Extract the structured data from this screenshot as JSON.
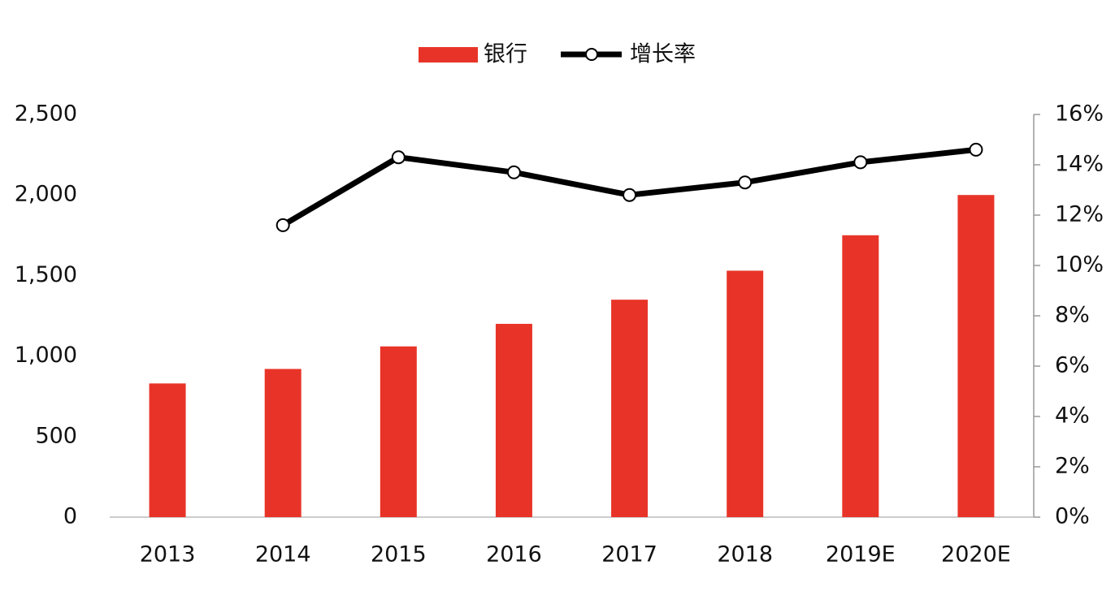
{
  "chart_data": {
    "type": "bar",
    "categories": [
      "2013",
      "2014",
      "2015",
      "2016",
      "2017",
      "2018",
      "2019E",
      "2020E"
    ],
    "series": [
      {
        "name": "银行",
        "type": "bar",
        "color": "#e83428",
        "values": [
          830,
          920,
          1060,
          1200,
          1350,
          1530,
          1750,
          2000
        ]
      },
      {
        "name": "增长率",
        "type": "line",
        "axis": "y2",
        "color": "#000000",
        "values": [
          null,
          11.6,
          14.3,
          13.7,
          12.8,
          13.3,
          14.1,
          14.6
        ]
      }
    ],
    "ylim": [
      0,
      2500
    ],
    "yticks": [
      0,
      500,
      {
        "value": 1000,
        "label": "1,000"
      },
      {
        "value": 1500,
        "label": "1,500"
      },
      {
        "value": 2000,
        "label": "2,000"
      },
      {
        "value": 2500,
        "label": "2,500"
      }
    ],
    "y2lim": [
      0,
      16
    ],
    "y2ticks": [
      {
        "value": 0,
        "label": "0%"
      },
      {
        "value": 2,
        "label": "2%"
      },
      {
        "value": 4,
        "label": "4%"
      },
      {
        "value": 6,
        "label": "6%"
      },
      {
        "value": 8,
        "label": "8%"
      },
      {
        "value": 10,
        "label": "10%"
      },
      {
        "value": 12,
        "label": "12%"
      },
      {
        "value": 14,
        "label": "14%"
      },
      {
        "value": 16,
        "label": "16%"
      }
    ],
    "grid": false,
    "legend": "top"
  }
}
